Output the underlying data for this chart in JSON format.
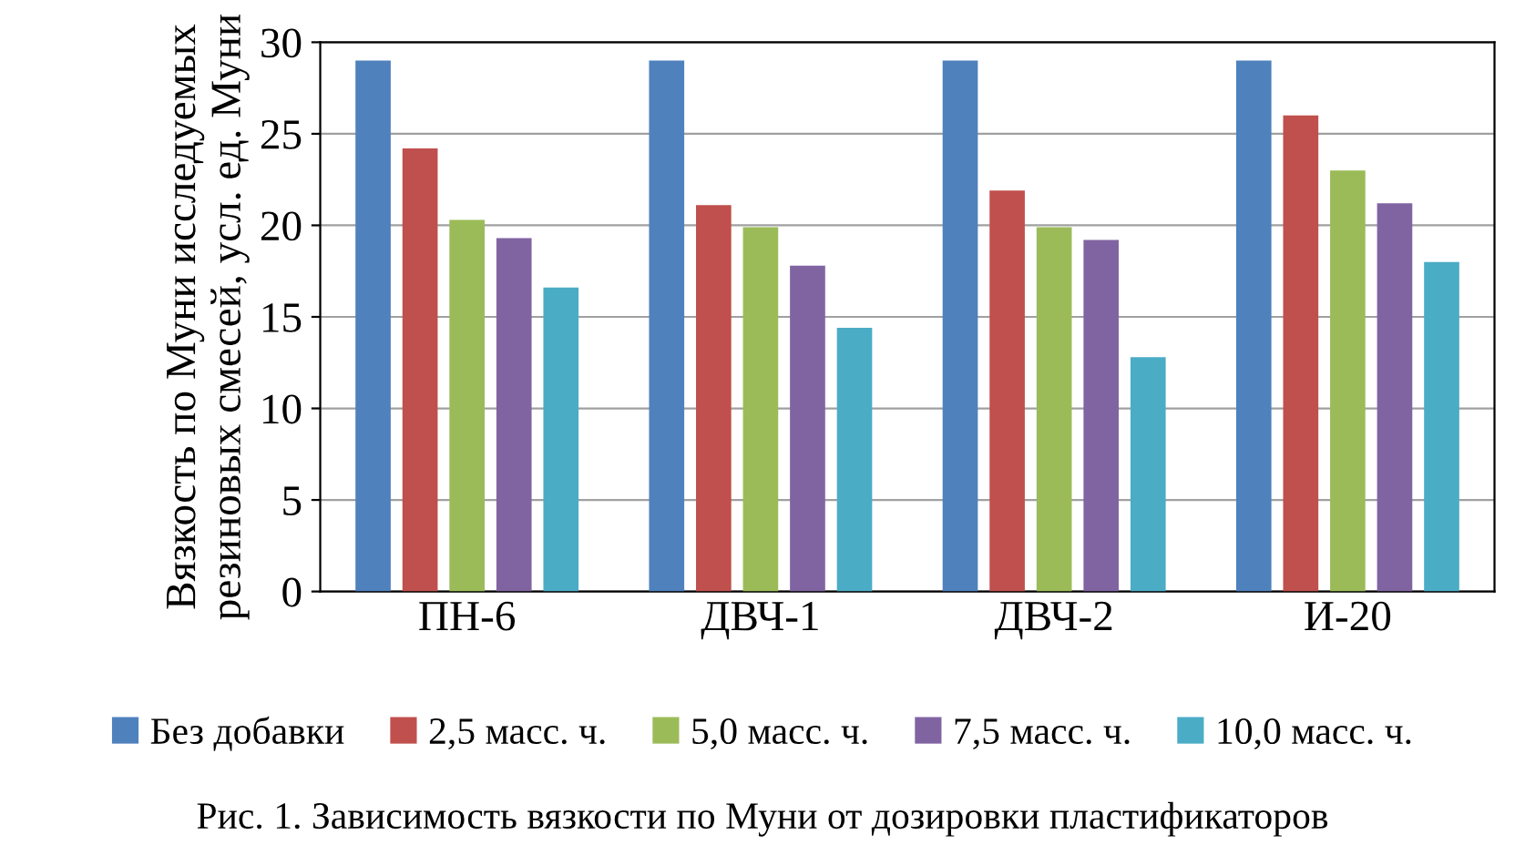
{
  "chart_data": {
    "type": "bar",
    "ylabel": "Вязкость по Муни исследуемых резиновых смесей, усл. ед. Муни",
    "categories": [
      "ПН-6",
      "ДВЧ-1",
      "ДВЧ-2",
      "И-20"
    ],
    "series": [
      {
        "name": "Без добавки",
        "color": "#4f81bd",
        "values": [
          29,
          29,
          29,
          29
        ]
      },
      {
        "name": "2,5 масс. ч.",
        "color": "#c0504d",
        "values": [
          24.2,
          21.1,
          21.9,
          26
        ]
      },
      {
        "name": "5,0 масс. ч.",
        "color": "#9bbb59",
        "values": [
          20.3,
          19.9,
          19.9,
          23
        ]
      },
      {
        "name": "7,5 масс. ч.",
        "color": "#8064a2",
        "values": [
          19.3,
          17.8,
          19.2,
          21.2
        ]
      },
      {
        "name": "10,0 масс. ч.",
        "color": "#4bacc6",
        "values": [
          16.6,
          14.4,
          12.8,
          18
        ]
      }
    ],
    "ylim": [
      0,
      30
    ],
    "yticks": [
      0,
      5,
      10,
      15,
      20,
      25,
      30
    ],
    "grid": "y",
    "legend": "bottom",
    "annotations": [
      "Рис. 1. Зависимость вязкости по Муни от дозировки пластификаторов"
    ]
  }
}
